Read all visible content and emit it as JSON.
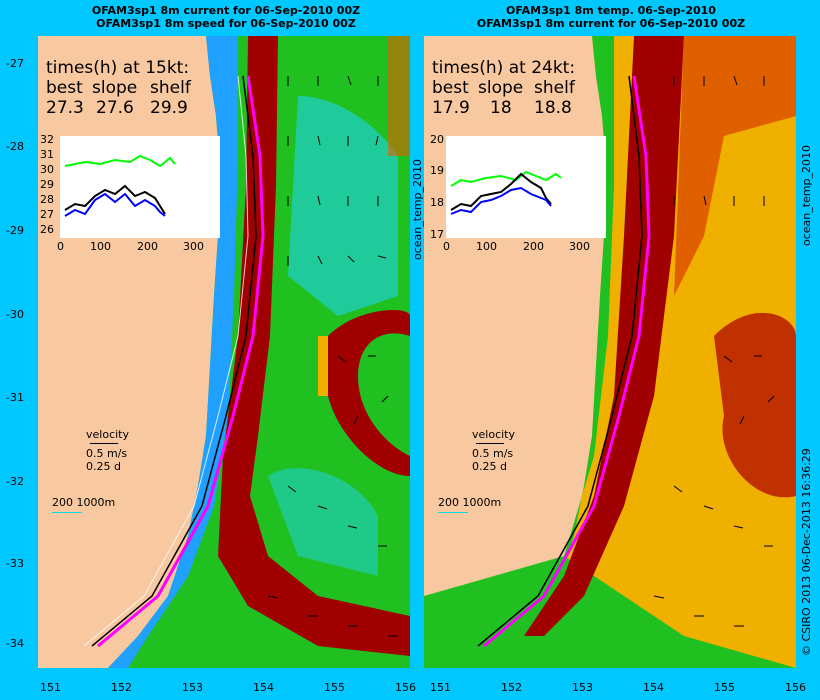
{
  "left_panel": {
    "title_line1": "OFAM3sp1 8m current for 06-Sep-2010 00Z",
    "title_line2": "OFAM3sp1 8m speed for 06-Sep-2010 00Z",
    "times_heading": "times(h) at 15kt:",
    "times_labels": [
      "best",
      "slope",
      "shelf"
    ],
    "times_values": [
      "27.3",
      "27.6",
      "29.9"
    ],
    "inset_yticks": [
      "32",
      "31",
      "30",
      "29",
      "28",
      "27",
      "26"
    ],
    "inset_xticks": [
      "0",
      "100",
      "200",
      "300"
    ],
    "velocity_label": "velocity",
    "velocity_speed": "0.5 m/s",
    "velocity_time": "0.25 d",
    "depth_legend": "200  1000m",
    "side_label": "ocean_temp_2010"
  },
  "right_panel": {
    "title_line1": "OFAM3sp1 8m temp. 06-Sep-2010",
    "title_line2": "OFAM3sp1 8m current for 06-Sep-2010 00Z",
    "times_heading": "times(h) at 24kt:",
    "times_labels": [
      "best",
      "slope",
      "shelf"
    ],
    "times_values": [
      "17.9",
      "18",
      "18.8"
    ],
    "inset_yticks": [
      "20",
      "19",
      "18",
      "17"
    ],
    "inset_xticks": [
      "0",
      "100",
      "200",
      "300"
    ],
    "velocity_label": "velocity",
    "velocity_speed": "0.5 m/s",
    "velocity_time": "0.25 d",
    "depth_legend": "200  1000m",
    "side_label": "ocean_temp_2010"
  },
  "lat_ticks": [
    "-27",
    "-28",
    "-29",
    "-30",
    "-31",
    "-32",
    "-33",
    "-34"
  ],
  "lon_ticks": [
    "151",
    "152",
    "153",
    "154",
    "155",
    "156",
    "151",
    "152",
    "153",
    "154",
    "155",
    "156"
  ],
  "footer_label": "© CSIRO 2013   06-Dec-2013 16:36:29",
  "colors": {
    "background": "#00c8ff",
    "land": "#f8c8a0",
    "route_best": "#ff00ff",
    "series_best": "#000000",
    "series_slope": "#0000ff",
    "series_shelf": "#00ff00",
    "hot": "#a00000",
    "warm": "#e06000",
    "mid": "#f0b000",
    "cool": "#20c020",
    "cold": "#20a0ff"
  }
}
